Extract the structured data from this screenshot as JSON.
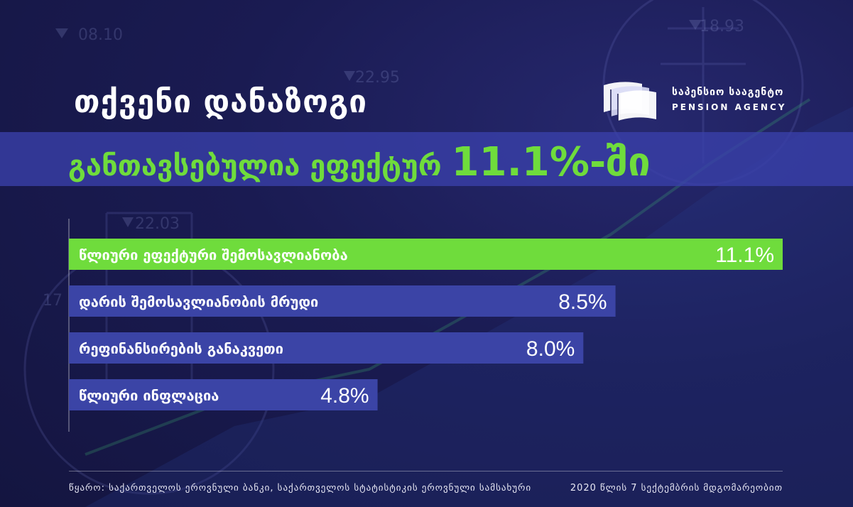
{
  "header": {
    "title": "თქვენი დანაზოგი",
    "subtitle": "განთავსებულია ეფექტურ",
    "subtitle_highlight": "11.1%-ში"
  },
  "logo": {
    "name_ka": "საპენსიო სააგენტო",
    "name_en": "PENSION AGENCY"
  },
  "background_ticker": [
    "08.10",
    "18.93",
    "22.95",
    "22.03",
    "17"
  ],
  "colors": {
    "background": "#1a1b52",
    "band": "#3a40aa",
    "accent_green": "#6fdc3c",
    "bar_blue": "#3b44a6",
    "bar_green": "#6fdc3c"
  },
  "chart_data": {
    "type": "bar",
    "orientation": "horizontal",
    "categories": [
      "წლიური ეფექტური შემოსავლიანობა",
      "დარის შემოსავლიანობის მრუდი",
      "რეფინანსირების განაკვეთი",
      "წლიური ინფლაცია"
    ],
    "values": [
      11.1,
      8.5,
      8.0,
      4.8
    ],
    "labels": [
      "11.1%",
      "8.5%",
      "8.0%",
      "4.8%"
    ],
    "xlim": [
      0,
      11.1
    ],
    "highlight_index": 0,
    "grid": false
  },
  "footer": {
    "source": "წყარო: საქართველოს ეროვნული ბანკი, საქართველოს სტატისტიკის ეროვნული სამსახური",
    "date": "2020 წლის 7 სექტემბრის მდგომარეობით"
  }
}
